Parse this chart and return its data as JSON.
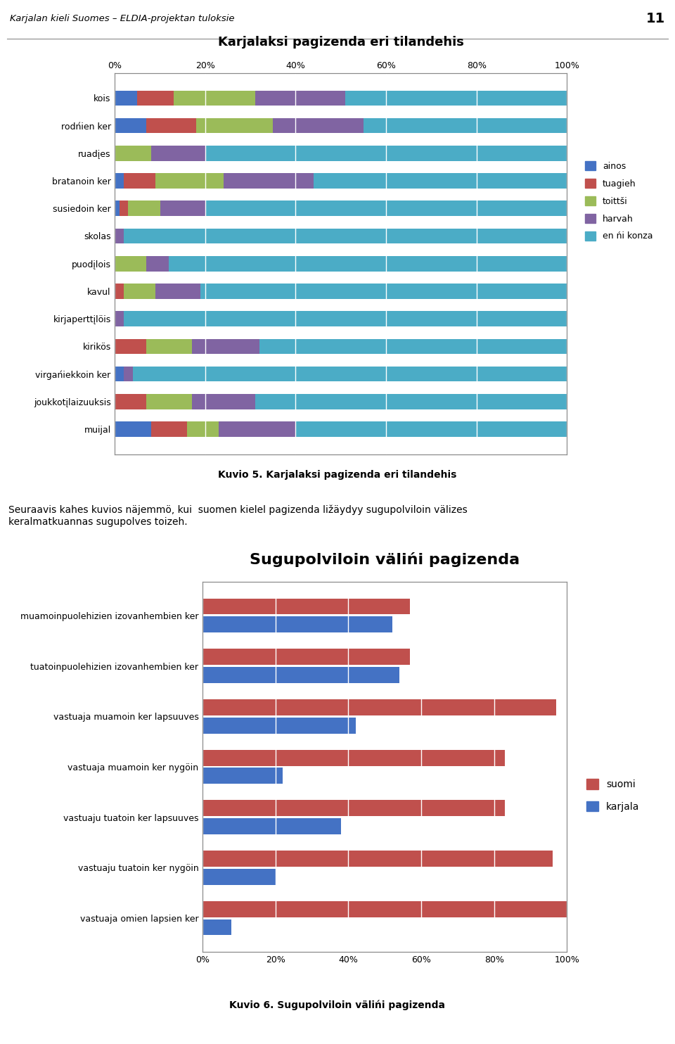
{
  "chart1": {
    "title": "Karjalaksi pagizenda eri tilandehis",
    "categories": [
      "kois",
      "rodńien ker",
      "ruadįes",
      "bratanoin ker",
      "susiedoin ker",
      "skolas",
      "puodįlois",
      "kavul",
      "kirjaperttįlöis",
      "kirikös",
      "virgańiekkoin ker",
      "joukkotįlaizuuksis",
      "muijal"
    ],
    "series": {
      "ainos": [
        5,
        7,
        0,
        2,
        1,
        0,
        0,
        0,
        0,
        0,
        2,
        0,
        8
      ],
      "tuagieh": [
        8,
        11,
        0,
        7,
        2,
        0,
        0,
        2,
        0,
        7,
        0,
        7,
        8
      ],
      "toittsi": [
        18,
        17,
        8,
        15,
        7,
        0,
        7,
        7,
        0,
        10,
        0,
        10,
        7
      ],
      "harvah": [
        20,
        20,
        12,
        20,
        10,
        2,
        5,
        10,
        2,
        15,
        2,
        14,
        17
      ],
      "en_ni_konza": [
        49,
        45,
        80,
        56,
        80,
        98,
        88,
        81,
        98,
        68,
        96,
        69,
        60
      ]
    },
    "colors": {
      "ainos": "#4472C4",
      "tuagieh": "#C0504D",
      "toittsi": "#9BBB59",
      "harvah": "#8064A2",
      "en_ni_konza": "#4BACC6"
    },
    "legend_labels": [
      "ainos",
      "tuagieh",
      "toittši",
      "harvah",
      "en ńi konza"
    ],
    "xlim": [
      0,
      100
    ],
    "xticks": [
      0,
      20,
      40,
      60,
      80,
      100
    ],
    "xticklabels": [
      "0%",
      "20%",
      "40%",
      "60%",
      "80%",
      "100%"
    ],
    "caption": "Kuvio 5. Karjalaksi pagizenda eri tilandehis"
  },
  "chart2": {
    "title": "Sugupolviloin välińi pagizenda",
    "categories": [
      "muamoinpuolehizien izovanhembien ker",
      "tuatoinpuolehizien izovanhembien ker",
      "vastuaja muamoin ker lapsuuves",
      "vastuaja muamoin ker nygöin",
      "vastuaju tuatoin ker lapsuuves",
      "vastuaju tuatoin ker nygöin",
      "vastuaja omien lapsien ker"
    ],
    "suomi": [
      57,
      57,
      97,
      83,
      83,
      96,
      100
    ],
    "karjala": [
      52,
      54,
      42,
      22,
      38,
      20,
      8
    ],
    "colors": {
      "suomi": "#C0504D",
      "karjala": "#4472C4"
    },
    "xlim": [
      0,
      100
    ],
    "xticks": [
      0,
      20,
      40,
      60,
      80,
      100
    ],
    "xticklabels": [
      "0%",
      "20%",
      "40%",
      "60%",
      "80%",
      "100%"
    ],
    "caption": "Kuvio 6. Sugupolviloin välińi pagizenda"
  },
  "header_text": "Karjalan kieli Suomes – ELDIA-projektan tuloksie",
  "header_page": "11",
  "middle_text": "Seuraavis kahes kuvios näjemmö, kui  suomen kielel pagizenda ližäydyy sugupolviloin välizes\nkeralmatkuannas sugupolves toizeh."
}
